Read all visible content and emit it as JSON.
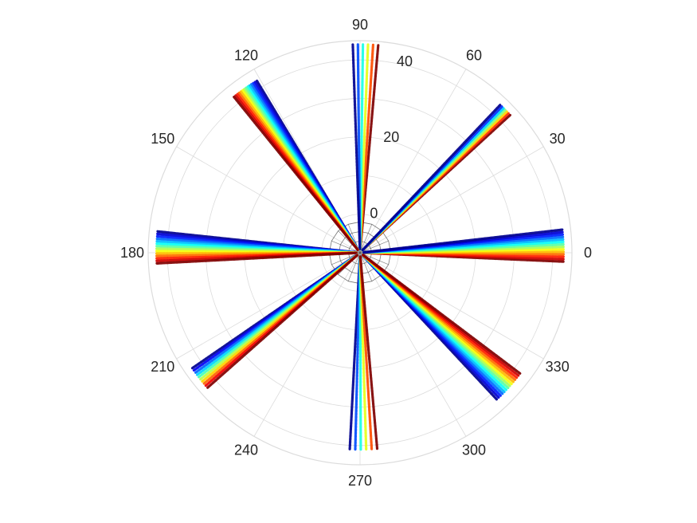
{
  "chart_data": {
    "type": "scatter",
    "coordinate_system": "polar",
    "title": "",
    "theta_unit": "degrees",
    "theta_ticks": [
      0,
      30,
      60,
      90,
      120,
      150,
      180,
      210,
      240,
      270,
      300,
      330
    ],
    "theta_tick_labels": [
      "0",
      "30",
      "60",
      "90",
      "120",
      "150",
      "180",
      "210",
      "240",
      "270",
      "300",
      "330"
    ],
    "r_lim": [
      -10,
      45
    ],
    "r_ticks": [
      0,
      20,
      40
    ],
    "r_tick_labels": [
      "0",
      "20",
      "40"
    ],
    "r_label_angle": 80,
    "grid": true,
    "grid_color": "#dcdcdc",
    "inner_web_color": "#555555",
    "colormap": "jet",
    "colormap_stops": [
      "#00008f",
      "#0000ff",
      "#0080ff",
      "#00ffff",
      "#80ff80",
      "#ffff00",
      "#ff8000",
      "#ff0000",
      "#800000"
    ],
    "inner_web": {
      "r_values": [
        -7,
        -4.5,
        -2
      ],
      "angles": [
        0,
        22.5,
        45,
        67.5,
        90,
        112.5,
        135,
        157.5,
        180,
        202.5,
        225,
        247.5,
        270,
        292.5,
        315,
        337.5
      ]
    },
    "ray_groups": [
      {
        "center_angle": 2,
        "spread": 9,
        "count": 14,
        "r_start": -10,
        "r_end": 43,
        "reverse": true
      },
      {
        "center_angle": 44.5,
        "spread": 4,
        "count": 7,
        "r_start": -10,
        "r_end": 43,
        "reverse": true
      },
      {
        "center_angle": 88.5,
        "spread": 7,
        "count": 6,
        "r_start": -10,
        "r_end": 44,
        "reverse": true
      },
      {
        "center_angle": 125,
        "spread": 8,
        "count": 14,
        "r_start": -10,
        "r_end": 42,
        "reverse": false
      },
      {
        "center_angle": 178.5,
        "spread": 9,
        "count": 14,
        "r_start": -10,
        "r_end": 43,
        "reverse": false
      },
      {
        "center_angle": 218,
        "spread": 7,
        "count": 10,
        "r_start": -10,
        "r_end": 43,
        "reverse": false
      },
      {
        "center_angle": 271,
        "spread": 8,
        "count": 6,
        "r_start": -10,
        "r_end": 41,
        "reverse": false
      },
      {
        "center_angle": 318,
        "spread": 10,
        "count": 14,
        "r_start": -10,
        "r_end": 42,
        "reverse": false
      }
    ]
  }
}
